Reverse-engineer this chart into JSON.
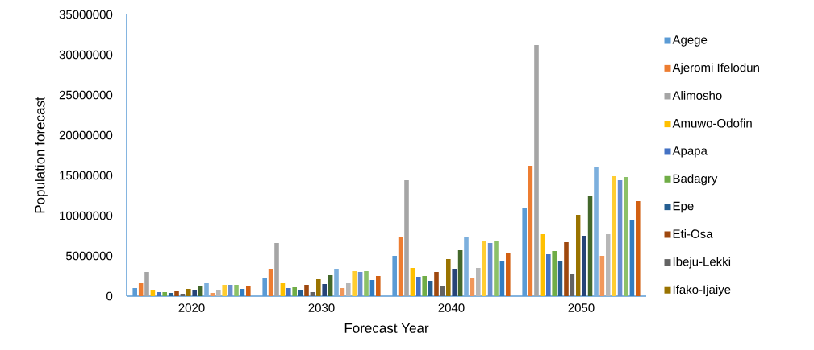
{
  "chart_data": {
    "type": "bar",
    "xlabel": "Forecast Year",
    "ylabel": "Population forecast",
    "categories": [
      "2020",
      "2030",
      "2040",
      "2050"
    ],
    "ylim": [
      0,
      35000000
    ],
    "yticks": [
      0,
      5000000,
      10000000,
      15000000,
      20000000,
      25000000,
      30000000,
      35000000
    ],
    "legend": "right",
    "series": [
      {
        "name": "Agege",
        "color": "#5b9bd5",
        "values": [
          1000000,
          2200000,
          5000000,
          10900000
        ]
      },
      {
        "name": "Ajeromi Ifelodun",
        "color": "#ed7d31",
        "values": [
          1600000,
          3400000,
          7400000,
          16200000
        ]
      },
      {
        "name": "Alimosho",
        "color": "#a5a5a5",
        "values": [
          3000000,
          6600000,
          14400000,
          31200000
        ]
      },
      {
        "name": "Amuwo-Odofin",
        "color": "#ffc000",
        "values": [
          700000,
          1600000,
          3500000,
          7700000
        ]
      },
      {
        "name": "Apapa",
        "color": "#4472c4",
        "values": [
          500000,
          1000000,
          2400000,
          5200000
        ]
      },
      {
        "name": "Badagry",
        "color": "#70ad47",
        "values": [
          500000,
          1100000,
          2500000,
          5600000
        ]
      },
      {
        "name": "Epe",
        "color": "#255e91",
        "values": [
          400000,
          800000,
          1900000,
          4300000
        ]
      },
      {
        "name": "Eti-Osa",
        "color": "#9e480e",
        "values": [
          600000,
          1400000,
          3000000,
          6700000
        ]
      },
      {
        "name": "Ibeju-Lekki",
        "color": "#636363",
        "values": [
          200000,
          500000,
          1200000,
          2800000
        ]
      },
      {
        "name": "Ifako-Ijaiye",
        "color": "#997300",
        "values": [
          900000,
          2100000,
          4600000,
          10100000
        ]
      },
      {
        "color": "#264478",
        "values": [
          700000,
          1500000,
          3400000,
          7500000
        ]
      },
      {
        "color": "#43682b",
        "values": [
          1200000,
          2600000,
          5700000,
          12400000
        ]
      },
      {
        "color": "#7cafdd",
        "values": [
          1600000,
          3400000,
          7400000,
          16100000
        ]
      },
      {
        "color": "#f1975a",
        "values": [
          400000,
          1000000,
          2200000,
          5000000
        ]
      },
      {
        "color": "#b7b7b7",
        "values": [
          700000,
          1600000,
          3500000,
          7700000
        ]
      },
      {
        "color": "#ffcd33",
        "values": [
          1400000,
          3100000,
          6800000,
          14900000
        ]
      },
      {
        "color": "#698ed0",
        "values": [
          1400000,
          3000000,
          6600000,
          14400000
        ]
      },
      {
        "color": "#8cc168",
        "values": [
          1400000,
          3100000,
          6800000,
          14800000
        ]
      },
      {
        "color": "#327dc2",
        "values": [
          900000,
          2000000,
          4300000,
          9500000
        ]
      },
      {
        "color": "#d26012",
        "values": [
          1200000,
          2500000,
          5400000,
          11800000
        ]
      }
    ]
  }
}
